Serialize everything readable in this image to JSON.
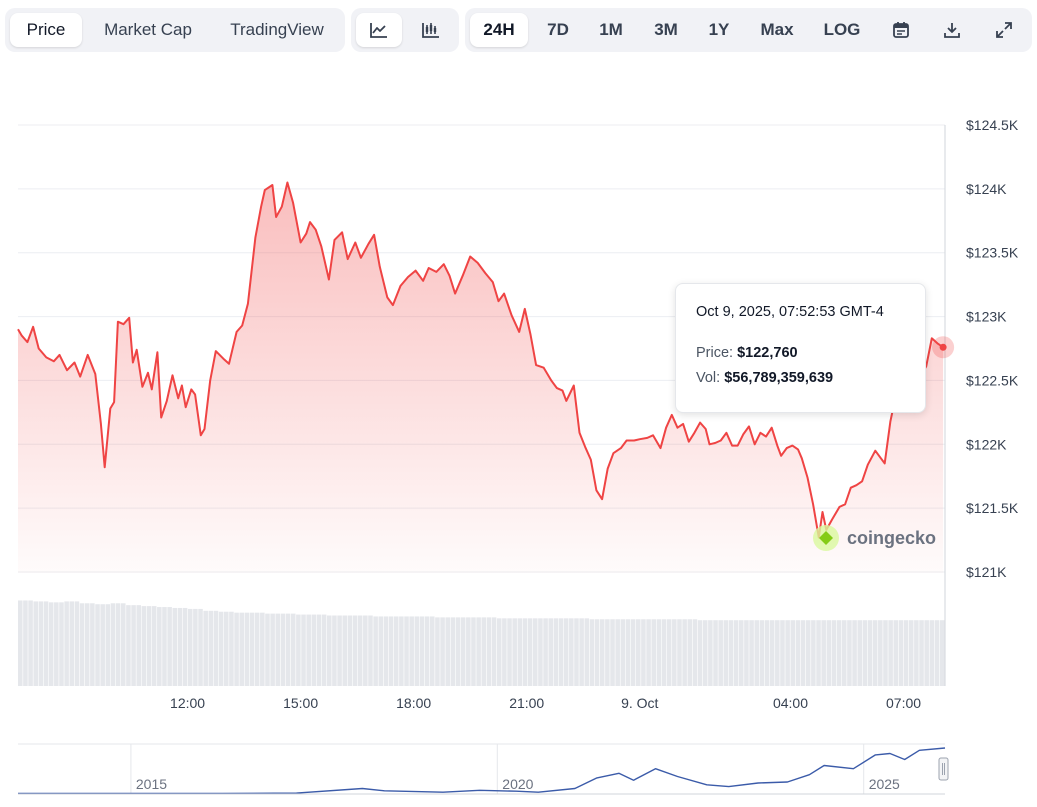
{
  "toolbar": {
    "view_tabs": [
      "Price",
      "Market Cap",
      "TradingView"
    ],
    "active_view": "Price",
    "chart_type_icons": [
      "line-chart-icon",
      "candlestick-chart-icon"
    ],
    "ranges": [
      "24H",
      "7D",
      "1M",
      "3M",
      "1Y",
      "Max",
      "LOG"
    ],
    "active_range": "24H",
    "action_icons": [
      "calendar-icon",
      "download-icon",
      "expand-icon"
    ]
  },
  "tooltip": {
    "timestamp": "Oct 9, 2025, 07:52:53 GMT-4",
    "price_label": "Price:",
    "price_value": "$122,760",
    "vol_label": "Vol:",
    "vol_value": "$56,789,359,639"
  },
  "watermark": "coingecko",
  "colors": {
    "line": "#ef4444",
    "accent_dot": "#ef4444",
    "navigator_line": "#3b5ba9",
    "grid": "#eceef2"
  },
  "chart_data": {
    "type": "area",
    "y_ticks": [
      124500,
      124000,
      123500,
      123000,
      122500,
      122000,
      121500,
      121000
    ],
    "y_tick_labels": [
      "$124.5K",
      "$124K",
      "$123.5K",
      "$123K",
      "$122.5K",
      "$122K",
      "$121.5K",
      "$121K"
    ],
    "ylim": [
      120900,
      124550
    ],
    "x_tick_labels": [
      "12:00",
      "15:00",
      "18:00",
      "21:00",
      "9. Oct",
      "04:00",
      "07:00"
    ],
    "x_tick_hours": [
      12,
      15,
      18,
      21,
      24,
      28,
      31
    ],
    "xlim_hours": [
      7.5,
      32.1
    ],
    "series": [
      {
        "values": [
          [
            7.5,
            122900
          ],
          [
            7.6,
            122850
          ],
          [
            7.75,
            122800
          ],
          [
            7.9,
            122920
          ],
          [
            8.05,
            122750
          ],
          [
            8.25,
            122680
          ],
          [
            8.45,
            122650
          ],
          [
            8.6,
            122700
          ],
          [
            8.8,
            122580
          ],
          [
            9.0,
            122640
          ],
          [
            9.15,
            122530
          ],
          [
            9.35,
            122700
          ],
          [
            9.55,
            122550
          ],
          [
            9.7,
            122160
          ],
          [
            9.8,
            121820
          ],
          [
            9.95,
            122280
          ],
          [
            10.05,
            122330
          ],
          [
            10.15,
            122960
          ],
          [
            10.3,
            122940
          ],
          [
            10.45,
            122990
          ],
          [
            10.55,
            122640
          ],
          [
            10.65,
            122740
          ],
          [
            10.8,
            122450
          ],
          [
            10.95,
            122560
          ],
          [
            11.05,
            122430
          ],
          [
            11.2,
            122720
          ],
          [
            11.3,
            122210
          ],
          [
            11.45,
            122340
          ],
          [
            11.6,
            122540
          ],
          [
            11.75,
            122360
          ],
          [
            11.85,
            122460
          ],
          [
            11.95,
            122290
          ],
          [
            12.1,
            122430
          ],
          [
            12.2,
            122390
          ],
          [
            12.35,
            122070
          ],
          [
            12.45,
            122120
          ],
          [
            12.6,
            122500
          ],
          [
            12.75,
            122730
          ],
          [
            12.95,
            122670
          ],
          [
            13.1,
            122630
          ],
          [
            13.3,
            122880
          ],
          [
            13.45,
            122930
          ],
          [
            13.6,
            123100
          ],
          [
            13.8,
            123620
          ],
          [
            13.95,
            123860
          ],
          [
            14.05,
            123990
          ],
          [
            14.25,
            124030
          ],
          [
            14.35,
            123780
          ],
          [
            14.5,
            123860
          ],
          [
            14.65,
            124050
          ],
          [
            14.8,
            123890
          ],
          [
            15.0,
            123580
          ],
          [
            15.15,
            123650
          ],
          [
            15.25,
            123740
          ],
          [
            15.4,
            123680
          ],
          [
            15.55,
            123550
          ],
          [
            15.75,
            123290
          ],
          [
            15.9,
            123600
          ],
          [
            16.1,
            123660
          ],
          [
            16.25,
            123450
          ],
          [
            16.45,
            123580
          ],
          [
            16.6,
            123460
          ],
          [
            16.8,
            123570
          ],
          [
            16.95,
            123640
          ],
          [
            17.1,
            123390
          ],
          [
            17.3,
            123150
          ],
          [
            17.45,
            123090
          ],
          [
            17.65,
            123240
          ],
          [
            17.85,
            123310
          ],
          [
            18.05,
            123360
          ],
          [
            18.25,
            123280
          ],
          [
            18.4,
            123380
          ],
          [
            18.6,
            123350
          ],
          [
            18.8,
            123410
          ],
          [
            18.95,
            123320
          ],
          [
            19.1,
            123180
          ],
          [
            19.3,
            123320
          ],
          [
            19.5,
            123470
          ],
          [
            19.7,
            123420
          ],
          [
            19.9,
            123340
          ],
          [
            20.1,
            123270
          ],
          [
            20.25,
            123120
          ],
          [
            20.4,
            123180
          ],
          [
            20.6,
            123010
          ],
          [
            20.8,
            122880
          ],
          [
            20.95,
            123060
          ],
          [
            21.1,
            122860
          ],
          [
            21.25,
            122620
          ],
          [
            21.45,
            122600
          ],
          [
            21.65,
            122500
          ],
          [
            21.8,
            122440
          ],
          [
            21.95,
            122420
          ],
          [
            22.05,
            122340
          ],
          [
            22.25,
            122460
          ],
          [
            22.4,
            122090
          ],
          [
            22.55,
            121980
          ],
          [
            22.7,
            121880
          ],
          [
            22.85,
            121640
          ],
          [
            23.0,
            121570
          ],
          [
            23.15,
            121810
          ],
          [
            23.3,
            121930
          ],
          [
            23.5,
            121970
          ],
          [
            23.65,
            122030
          ],
          [
            23.85,
            122030
          ],
          [
            24.0,
            122040
          ],
          [
            24.2,
            122050
          ],
          [
            24.35,
            122070
          ],
          [
            24.55,
            121970
          ],
          [
            24.7,
            122130
          ],
          [
            24.85,
            122230
          ],
          [
            25.0,
            122130
          ],
          [
            25.15,
            122160
          ],
          [
            25.3,
            122020
          ],
          [
            25.45,
            122090
          ],
          [
            25.6,
            122170
          ],
          [
            25.75,
            122120
          ],
          [
            25.85,
            122000
          ],
          [
            26.0,
            122010
          ],
          [
            26.15,
            122030
          ],
          [
            26.3,
            122090
          ],
          [
            26.45,
            121990
          ],
          [
            26.6,
            121990
          ],
          [
            26.75,
            122080
          ],
          [
            26.9,
            122140
          ],
          [
            27.05,
            122000
          ],
          [
            27.2,
            122090
          ],
          [
            27.35,
            122060
          ],
          [
            27.5,
            122130
          ],
          [
            27.65,
            121990
          ],
          [
            27.75,
            121910
          ],
          [
            27.9,
            121970
          ],
          [
            28.05,
            121990
          ],
          [
            28.2,
            121960
          ],
          [
            28.3,
            121890
          ],
          [
            28.45,
            121740
          ],
          [
            28.6,
            121530
          ],
          [
            28.75,
            121270
          ],
          [
            28.85,
            121470
          ],
          [
            28.95,
            121330
          ],
          [
            29.1,
            121410
          ],
          [
            29.3,
            121510
          ],
          [
            29.45,
            121530
          ],
          [
            29.6,
            121660
          ],
          [
            29.75,
            121680
          ],
          [
            29.9,
            121710
          ],
          [
            30.05,
            121840
          ],
          [
            30.25,
            121950
          ],
          [
            30.4,
            121890
          ],
          [
            30.5,
            121850
          ],
          [
            30.65,
            122180
          ],
          [
            30.8,
            122390
          ],
          [
            31.0,
            122300
          ],
          [
            31.2,
            122330
          ],
          [
            31.4,
            122510
          ],
          [
            31.6,
            122610
          ],
          [
            31.75,
            122830
          ],
          [
            31.9,
            122790
          ],
          [
            32.05,
            122760
          ]
        ]
      }
    ],
    "volume": {
      "values": [
        0.91,
        0.9,
        0.89,
        0.9,
        0.88,
        0.87,
        0.88,
        0.86,
        0.85,
        0.84,
        0.83,
        0.82,
        0.8,
        0.79,
        0.78,
        0.78,
        0.77,
        0.77,
        0.76,
        0.76,
        0.75,
        0.75,
        0.75,
        0.74,
        0.74,
        0.74,
        0.74,
        0.73,
        0.73,
        0.73,
        0.73,
        0.72,
        0.72,
        0.72,
        0.72,
        0.72,
        0.72,
        0.71,
        0.71,
        0.71,
        0.71,
        0.71,
        0.71,
        0.71,
        0.7,
        0.7,
        0.7,
        0.7,
        0.7,
        0.7,
        0.7,
        0.7,
        0.7,
        0.7,
        0.7,
        0.7,
        0.7,
        0.7,
        0.7,
        0.7
      ]
    },
    "navigator": {
      "year_labels": [
        "2015",
        "2020",
        "2025"
      ],
      "year_positions": [
        2015,
        2020,
        2025
      ],
      "xlim_years": [
        2013.2,
        2025.85
      ],
      "values": [
        [
          2013.2,
          0.01
        ],
        [
          2014.5,
          0.01
        ],
        [
          2016.0,
          0.01
        ],
        [
          2017.0,
          0.02
        ],
        [
          2017.9,
          0.12
        ],
        [
          2018.2,
          0.07
        ],
        [
          2019.0,
          0.04
        ],
        [
          2019.5,
          0.08
        ],
        [
          2020.0,
          0.06
        ],
        [
          2020.3,
          0.04
        ],
        [
          2020.8,
          0.12
        ],
        [
          2021.1,
          0.35
        ],
        [
          2021.4,
          0.45
        ],
        [
          2021.6,
          0.3
        ],
        [
          2021.9,
          0.55
        ],
        [
          2022.2,
          0.38
        ],
        [
          2022.6,
          0.2
        ],
        [
          2022.9,
          0.16
        ],
        [
          2023.3,
          0.24
        ],
        [
          2023.7,
          0.26
        ],
        [
          2024.0,
          0.42
        ],
        [
          2024.2,
          0.62
        ],
        [
          2024.6,
          0.55
        ],
        [
          2024.9,
          0.85
        ],
        [
          2025.1,
          0.88
        ],
        [
          2025.3,
          0.75
        ],
        [
          2025.5,
          0.95
        ],
        [
          2025.85,
          1.0
        ]
      ]
    }
  }
}
